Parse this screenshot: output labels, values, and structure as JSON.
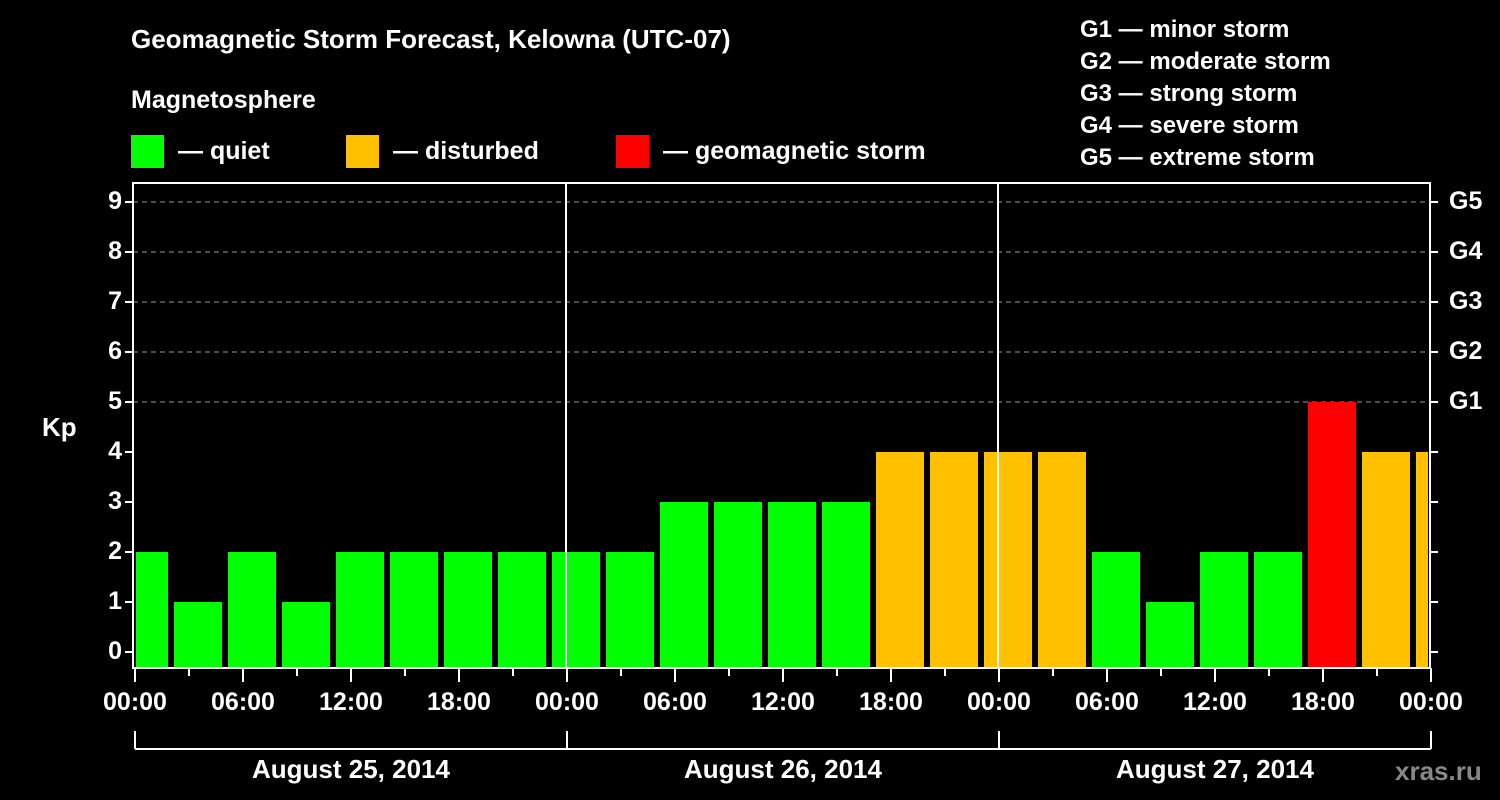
{
  "header": {
    "title": "Geomagnetic Storm Forecast, Kelowna (UTC-07)",
    "subtitle": "Magnetosphere",
    "legend": [
      {
        "label": "— quiet",
        "color": "#00ff00"
      },
      {
        "label": "— disturbed",
        "color": "#ffc000"
      },
      {
        "label": "— geomagnetic storm",
        "color": "#ff0000"
      }
    ]
  },
  "g_scale": [
    "G1 — minor storm",
    "G2 — moderate storm",
    "G3 — strong storm",
    "G4 — severe storm",
    "G5 — extreme storm"
  ],
  "watermark": "xras.ru",
  "chart_data": {
    "type": "bar",
    "title": "Geomagnetic Storm Forecast, Kelowna (UTC-07)",
    "ylabel": "Kp",
    "xlabel": "",
    "ylim": [
      0,
      9
    ],
    "y_ticks": [
      0,
      1,
      2,
      3,
      4,
      5,
      6,
      7,
      8,
      9
    ],
    "right_axis_ticks": [
      {
        "kp": 5,
        "label": "G1"
      },
      {
        "kp": 6,
        "label": "G2"
      },
      {
        "kp": 7,
        "label": "G3"
      },
      {
        "kp": 8,
        "label": "G4"
      },
      {
        "kp": 9,
        "label": "G5"
      }
    ],
    "grid": "dashed horizontal at Kp 5–9",
    "x_tick_labels": [
      "00:00",
      "06:00",
      "12:00",
      "18:00",
      "00:00",
      "06:00",
      "12:00",
      "18:00",
      "00:00",
      "06:00",
      "12:00",
      "18:00",
      "00:00"
    ],
    "dates": [
      "August 25, 2014",
      "August 26, 2014",
      "August 27, 2014"
    ],
    "legend": [
      "quiet",
      "disturbed",
      "geomagnetic storm"
    ],
    "bars": [
      {
        "start": "Aug 25 00:00",
        "end": "Aug 25 02:00",
        "kp": 2,
        "status": "quiet"
      },
      {
        "start": "Aug 25 02:00",
        "end": "Aug 25 05:00",
        "kp": 1,
        "status": "quiet"
      },
      {
        "start": "Aug 25 05:00",
        "end": "Aug 25 08:00",
        "kp": 2,
        "status": "quiet"
      },
      {
        "start": "Aug 25 08:00",
        "end": "Aug 25 11:00",
        "kp": 1,
        "status": "quiet"
      },
      {
        "start": "Aug 25 11:00",
        "end": "Aug 25 14:00",
        "kp": 2,
        "status": "quiet"
      },
      {
        "start": "Aug 25 14:00",
        "end": "Aug 25 17:00",
        "kp": 2,
        "status": "quiet"
      },
      {
        "start": "Aug 25 17:00",
        "end": "Aug 25 20:00",
        "kp": 2,
        "status": "quiet"
      },
      {
        "start": "Aug 25 20:00",
        "end": "Aug 25 23:00",
        "kp": 2,
        "status": "quiet"
      },
      {
        "start": "Aug 25 23:00",
        "end": "Aug 26 02:00",
        "kp": 2,
        "status": "quiet"
      },
      {
        "start": "Aug 26 02:00",
        "end": "Aug 26 05:00",
        "kp": 2,
        "status": "quiet"
      },
      {
        "start": "Aug 26 05:00",
        "end": "Aug 26 08:00",
        "kp": 3,
        "status": "quiet"
      },
      {
        "start": "Aug 26 08:00",
        "end": "Aug 26 11:00",
        "kp": 3,
        "status": "quiet"
      },
      {
        "start": "Aug 26 11:00",
        "end": "Aug 26 14:00",
        "kp": 3,
        "status": "quiet"
      },
      {
        "start": "Aug 26 14:00",
        "end": "Aug 26 17:00",
        "kp": 3,
        "status": "quiet"
      },
      {
        "start": "Aug 26 17:00",
        "end": "Aug 26 20:00",
        "kp": 4,
        "status": "disturbed"
      },
      {
        "start": "Aug 26 20:00",
        "end": "Aug 26 23:00",
        "kp": 4,
        "status": "disturbed"
      },
      {
        "start": "Aug 26 23:00",
        "end": "Aug 27 02:00",
        "kp": 4,
        "status": "disturbed"
      },
      {
        "start": "Aug 27 02:00",
        "end": "Aug 27 05:00",
        "kp": 4,
        "status": "disturbed"
      },
      {
        "start": "Aug 27 05:00",
        "end": "Aug 27 08:00",
        "kp": 2,
        "status": "quiet"
      },
      {
        "start": "Aug 27 08:00",
        "end": "Aug 27 11:00",
        "kp": 1,
        "status": "quiet"
      },
      {
        "start": "Aug 27 11:00",
        "end": "Aug 27 14:00",
        "kp": 2,
        "status": "quiet"
      },
      {
        "start": "Aug 27 14:00",
        "end": "Aug 27 17:00",
        "kp": 2,
        "status": "quiet"
      },
      {
        "start": "Aug 27 17:00",
        "end": "Aug 27 20:00",
        "kp": 5,
        "status": "geomagnetic storm"
      },
      {
        "start": "Aug 27 20:00",
        "end": "Aug 27 23:00",
        "kp": 4,
        "status": "disturbed"
      },
      {
        "start": "Aug 27 23:00",
        "end": "Aug 28 00:00",
        "kp": 4,
        "status": "disturbed"
      }
    ],
    "colors": {
      "quiet": "#00ff00",
      "disturbed": "#ffc000",
      "geomagnetic storm": "#ff0000"
    }
  }
}
